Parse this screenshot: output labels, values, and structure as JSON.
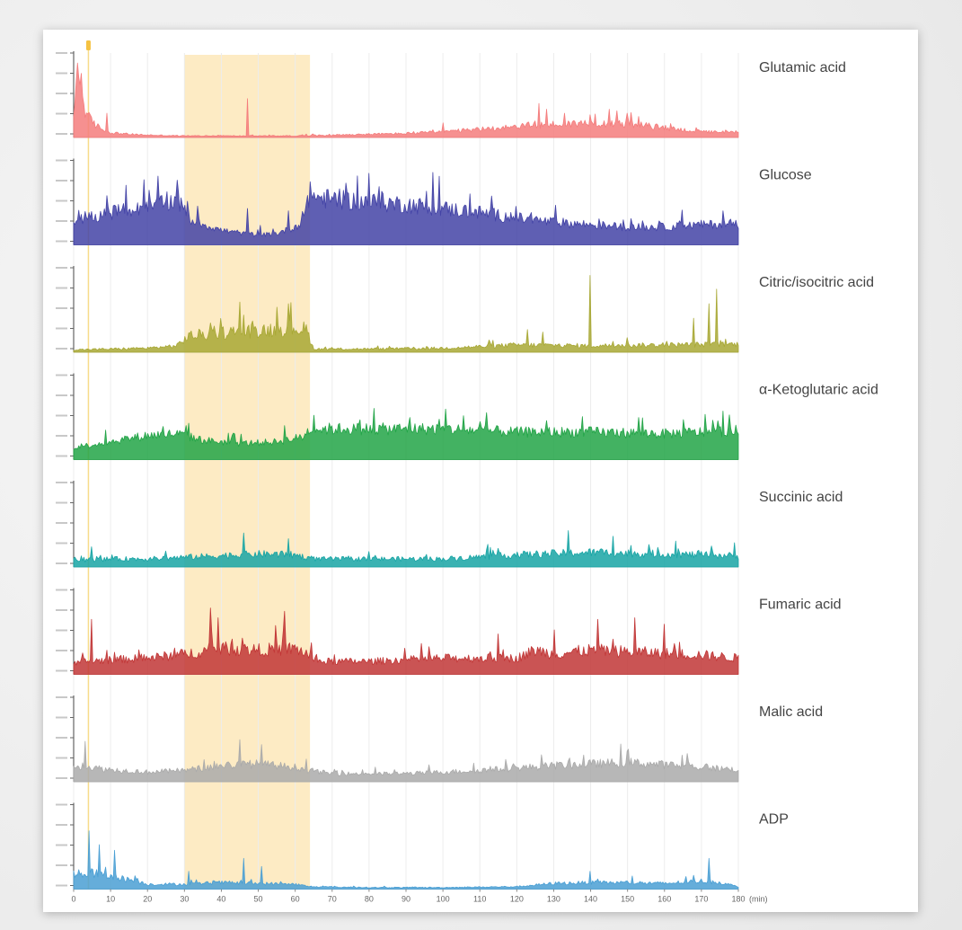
{
  "chart_data": {
    "type": "line",
    "title": "",
    "xlabel": "(min)",
    "x_range": [
      0,
      180
    ],
    "x_ticks": [
      0,
      10,
      20,
      30,
      40,
      50,
      60,
      70,
      80,
      90,
      100,
      110,
      120,
      130,
      140,
      150,
      160,
      170,
      180
    ],
    "x_tick_labels": [
      "0",
      "10",
      "20",
      "30",
      "40",
      "50",
      "60",
      "70",
      "80",
      "90",
      "100",
      "110",
      "120",
      "130",
      "140",
      "150",
      "160",
      "170",
      "180"
    ],
    "highlight_window": {
      "start": 30,
      "end": 64,
      "color": "#fdebc4"
    },
    "event_marker": {
      "x": 4,
      "color": "#f5c242"
    },
    "grid": true,
    "series": [
      {
        "name": "Glutamic acid",
        "color": "#f47c7c",
        "ylim": [
          0,
          100
        ],
        "y_ticks": 5,
        "keypoints": [
          [
            0,
            20
          ],
          [
            1,
            85
          ],
          [
            2,
            70
          ],
          [
            3,
            35
          ],
          [
            4,
            25
          ],
          [
            6,
            15
          ],
          [
            8,
            10
          ],
          [
            10,
            6
          ],
          [
            15,
            4
          ],
          [
            20,
            3
          ],
          [
            30,
            2
          ],
          [
            40,
            2
          ],
          [
            50,
            2
          ],
          [
            60,
            2
          ],
          [
            70,
            3
          ],
          [
            80,
            4
          ],
          [
            90,
            5
          ],
          [
            100,
            7
          ],
          [
            110,
            10
          ],
          [
            120,
            14
          ],
          [
            130,
            16
          ],
          [
            140,
            18
          ],
          [
            150,
            17
          ],
          [
            160,
            12
          ],
          [
            170,
            7
          ],
          [
            180,
            6
          ]
        ],
        "noise": 0.6,
        "spikes": [
          [
            1,
            92
          ],
          [
            2,
            58
          ],
          [
            9,
            30
          ],
          [
            47,
            48
          ],
          [
            100,
            18
          ],
          [
            126,
            42
          ],
          [
            128,
            35
          ],
          [
            133,
            30
          ],
          [
            140,
            28
          ],
          [
            145,
            35
          ],
          [
            147,
            33
          ],
          [
            150,
            30
          ],
          [
            153,
            26
          ]
        ]
      },
      {
        "name": "Glucose",
        "color": "#4343a6",
        "ylim": [
          0,
          100
        ],
        "y_ticks": 5,
        "keypoints": [
          [
            0,
            30
          ],
          [
            10,
            40
          ],
          [
            20,
            45
          ],
          [
            28,
            55
          ],
          [
            32,
            30
          ],
          [
            40,
            18
          ],
          [
            50,
            12
          ],
          [
            55,
            14
          ],
          [
            60,
            22
          ],
          [
            62,
            30
          ],
          [
            64,
            60
          ],
          [
            70,
            56
          ],
          [
            80,
            53
          ],
          [
            90,
            50
          ],
          [
            100,
            45
          ],
          [
            110,
            40
          ],
          [
            120,
            33
          ],
          [
            130,
            28
          ],
          [
            140,
            25
          ],
          [
            150,
            22
          ],
          [
            160,
            22
          ],
          [
            170,
            25
          ],
          [
            180,
            26
          ]
        ],
        "noise": 0.45,
        "spikes": [
          [
            23,
            85
          ],
          [
            28,
            80
          ],
          [
            47,
            45
          ],
          [
            58,
            42
          ],
          [
            64,
            78
          ]
        ]
      },
      {
        "name": "Citric/isocitric acid",
        "color": "#a8a835",
        "ylim": [
          0,
          100
        ],
        "y_ticks": 5,
        "keypoints": [
          [
            0,
            3
          ],
          [
            10,
            4
          ],
          [
            20,
            5
          ],
          [
            28,
            8
          ],
          [
            31,
            20
          ],
          [
            40,
            24
          ],
          [
            50,
            27
          ],
          [
            60,
            30
          ],
          [
            63,
            28
          ],
          [
            65,
            4
          ],
          [
            80,
            4
          ],
          [
            100,
            5
          ],
          [
            120,
            9
          ],
          [
            140,
            8
          ],
          [
            160,
            9
          ],
          [
            180,
            10
          ]
        ],
        "noise": 0.7,
        "spikes": [
          [
            45,
            62
          ],
          [
            58,
            60
          ],
          [
            140,
            95
          ],
          [
            168,
            42
          ],
          [
            172,
            60
          ],
          [
            174,
            78
          ],
          [
            123,
            28
          ],
          [
            127,
            25
          ],
          [
            150,
            18
          ]
        ]
      },
      {
        "name": "α-Ketoglutaric acid",
        "color": "#22a447",
        "ylim": [
          0,
          100
        ],
        "y_ticks": 5,
        "keypoints": [
          [
            0,
            15
          ],
          [
            10,
            22
          ],
          [
            20,
            30
          ],
          [
            28,
            32
          ],
          [
            35,
            24
          ],
          [
            45,
            20
          ],
          [
            55,
            22
          ],
          [
            62,
            28
          ],
          [
            64,
            38
          ],
          [
            80,
            38
          ],
          [
            100,
            38
          ],
          [
            120,
            34
          ],
          [
            140,
            34
          ],
          [
            160,
            32
          ],
          [
            180,
            36
          ]
        ],
        "noise": 0.4,
        "spikes": [
          [
            31,
            45
          ],
          [
            57,
            42
          ],
          [
            91,
            52
          ],
          [
            153,
            52
          ],
          [
            176,
            60
          ]
        ]
      },
      {
        "name": "Succinic acid",
        "color": "#18a5a5",
        "ylim": [
          0,
          100
        ],
        "y_ticks": 5,
        "keypoints": [
          [
            0,
            8
          ],
          [
            10,
            10
          ],
          [
            20,
            10
          ],
          [
            30,
            12
          ],
          [
            40,
            14
          ],
          [
            50,
            16
          ],
          [
            60,
            15
          ],
          [
            65,
            10
          ],
          [
            80,
            10
          ],
          [
            100,
            10
          ],
          [
            120,
            15
          ],
          [
            140,
            18
          ],
          [
            160,
            16
          ],
          [
            180,
            14
          ]
        ],
        "noise": 0.6,
        "spikes": [
          [
            5,
            25
          ],
          [
            46,
            42
          ],
          [
            58,
            35
          ],
          [
            112,
            28
          ],
          [
            134,
            45
          ],
          [
            146,
            38
          ],
          [
            163,
            32
          ],
          [
            179,
            30
          ]
        ]
      },
      {
        "name": "Fumaric acid",
        "color": "#c13636",
        "ylim": [
          0,
          100
        ],
        "y_ticks": 5,
        "keypoints": [
          [
            0,
            15
          ],
          [
            10,
            18
          ],
          [
            20,
            20
          ],
          [
            30,
            25
          ],
          [
            40,
            32
          ],
          [
            50,
            30
          ],
          [
            60,
            32
          ],
          [
            63,
            26
          ],
          [
            66,
            16
          ],
          [
            80,
            16
          ],
          [
            100,
            20
          ],
          [
            120,
            20
          ],
          [
            125,
            30
          ],
          [
            130,
            25
          ],
          [
            140,
            30
          ],
          [
            150,
            28
          ],
          [
            160,
            26
          ],
          [
            170,
            24
          ],
          [
            180,
            20
          ]
        ],
        "noise": 0.55,
        "spikes": [
          [
            5,
            68
          ],
          [
            37,
            82
          ],
          [
            39,
            70
          ],
          [
            57,
            78
          ],
          [
            115,
            50
          ],
          [
            142,
            68
          ],
          [
            152,
            70
          ],
          [
            160,
            62
          ],
          [
            130,
            55
          ]
        ]
      },
      {
        "name": "Malic acid",
        "color": "#aaaaaa",
        "ylim": [
          0,
          100
        ],
        "y_ticks": 5,
        "keypoints": [
          [
            0,
            20
          ],
          [
            10,
            15
          ],
          [
            20,
            12
          ],
          [
            30,
            14
          ],
          [
            40,
            20
          ],
          [
            50,
            22
          ],
          [
            60,
            18
          ],
          [
            64,
            14
          ],
          [
            70,
            10
          ],
          [
            90,
            10
          ],
          [
            110,
            14
          ],
          [
            130,
            20
          ],
          [
            150,
            24
          ],
          [
            170,
            18
          ],
          [
            180,
            15
          ]
        ],
        "noise": 0.5,
        "spikes": [
          [
            3,
            50
          ],
          [
            45,
            52
          ],
          [
            51,
            46
          ],
          [
            150,
            38
          ],
          [
            138,
            33
          ]
        ]
      },
      {
        "name": "ADP",
        "color": "#4a9fd4",
        "ylim": [
          0,
          100
        ],
        "y_ticks": 5,
        "keypoints": [
          [
            0,
            18
          ],
          [
            5,
            20
          ],
          [
            10,
            15
          ],
          [
            15,
            12
          ],
          [
            20,
            6
          ],
          [
            30,
            6
          ],
          [
            40,
            8
          ],
          [
            50,
            7
          ],
          [
            60,
            6
          ],
          [
            64,
            3
          ],
          [
            80,
            2
          ],
          [
            100,
            2
          ],
          [
            120,
            3
          ],
          [
            130,
            7
          ],
          [
            140,
            8
          ],
          [
            150,
            8
          ],
          [
            160,
            7
          ],
          [
            170,
            10
          ],
          [
            175,
            8
          ],
          [
            180,
            3
          ]
        ],
        "noise": 0.6,
        "spikes": [
          [
            4,
            72
          ],
          [
            7,
            55
          ],
          [
            11,
            48
          ],
          [
            31,
            22
          ],
          [
            46,
            38
          ],
          [
            51,
            28
          ],
          [
            140,
            22
          ],
          [
            172,
            38
          ]
        ]
      }
    ]
  }
}
